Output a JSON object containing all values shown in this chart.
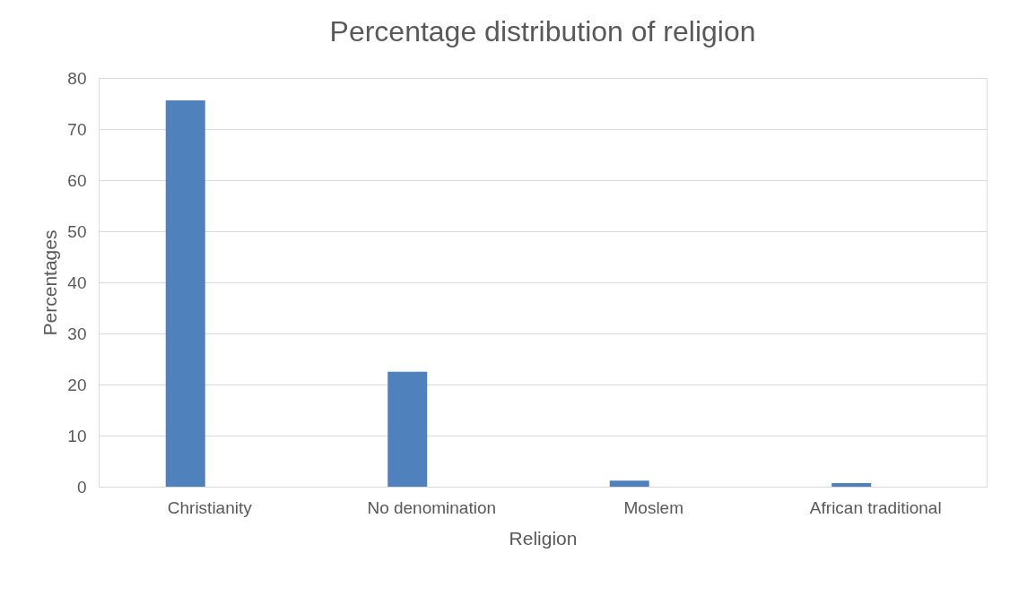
{
  "chart_data": {
    "type": "bar",
    "title": "Percentage distribution of religion",
    "xlabel": "Religion",
    "ylabel": "Percentages",
    "categories": [
      "Christianity",
      "No denomination",
      "Moslem",
      "African traditional"
    ],
    "values": [
      75.6,
      22.5,
      1.2,
      0.7
    ],
    "color": "#4f81bd",
    "ylim": [
      0,
      80
    ],
    "yticks": [
      0,
      10,
      20,
      30,
      40,
      50,
      60,
      70,
      80
    ],
    "grid": "y"
  }
}
